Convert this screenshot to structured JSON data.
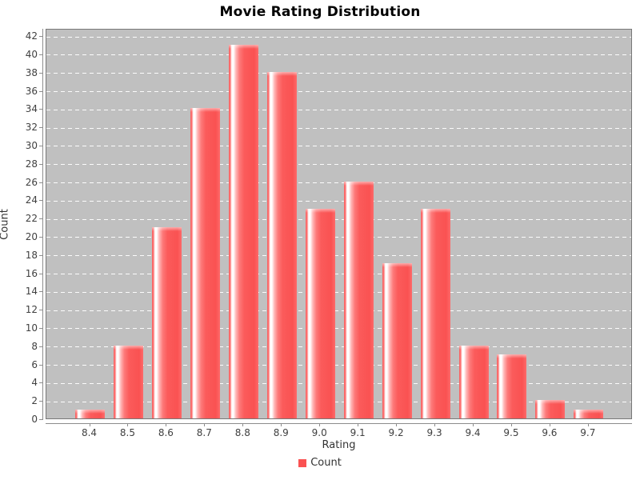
{
  "title": "Movie Rating Distribution",
  "chart_data": {
    "type": "bar",
    "title": "Movie Rating Distribution",
    "xlabel": "Rating",
    "ylabel": "Count",
    "categories": [
      "8.4",
      "8.5",
      "8.6",
      "8.7",
      "8.8",
      "8.9",
      "9.0",
      "9.1",
      "9.2",
      "9.3",
      "9.4",
      "9.5",
      "9.6",
      "9.7"
    ],
    "values": [
      1,
      8,
      21,
      34,
      41,
      38,
      23,
      26,
      17,
      23,
      8,
      7,
      2,
      1
    ],
    "series_name": "Count",
    "ylim": [
      0,
      42
    ],
    "y_tick_step": 2,
    "y_ticks": [
      0,
      2,
      4,
      6,
      8,
      10,
      12,
      14,
      16,
      18,
      20,
      22,
      24,
      26,
      28,
      30,
      32,
      34,
      36,
      38,
      40,
      42
    ],
    "grid": "horizontal-dashed",
    "legend_position": "bottom",
    "colors": {
      "bar": "#fa5252",
      "bar_highlight": "#ffffff",
      "plot_background": "#c0c0c0",
      "gridline": "#ffffff",
      "axis": "#8c8c8c",
      "tick_text": "#404040",
      "title_text": "#000000"
    }
  },
  "legend": {
    "items": [
      {
        "label": "Count",
        "color": "#fa5252"
      }
    ]
  }
}
